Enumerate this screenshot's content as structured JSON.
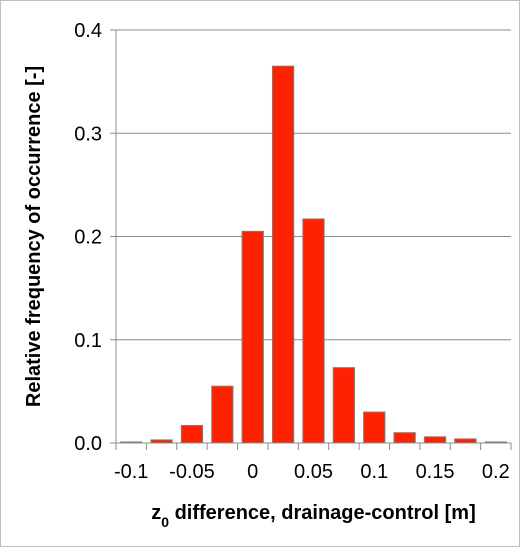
{
  "chart_data": {
    "type": "bar",
    "categories": [
      "-0.1",
      "-0.075",
      "-0.05",
      "-0.025",
      "0",
      "0.025",
      "0.05",
      "0.075",
      "0.1",
      "0.125",
      "0.15",
      "0.175",
      "0.2"
    ],
    "values": [
      0.001,
      0.003,
      0.017,
      0.055,
      0.205,
      0.365,
      0.217,
      0.073,
      0.03,
      0.01,
      0.006,
      0.004,
      0.001
    ],
    "x_ticks": [
      "-0.1",
      "-0.05",
      "0",
      "0.05",
      "0.1",
      "0.15",
      "0.2"
    ],
    "y_ticks": [
      "0.0",
      "0.1",
      "0.2",
      "0.3",
      "0.4"
    ],
    "ylim": [
      0,
      0.4
    ],
    "xlim": [
      -0.1125,
      0.2125
    ],
    "xlabel_main": "z",
    "xlabel_sub": "0",
    "xlabel_rest": " difference, drainage-control [m]",
    "ylabel": "Relative frequency of occurrence [-]",
    "grid": true,
    "colors": {
      "bar": "#ff2200",
      "bar_edge": "#7f7f7f",
      "grid": "#8c8c8c"
    }
  }
}
